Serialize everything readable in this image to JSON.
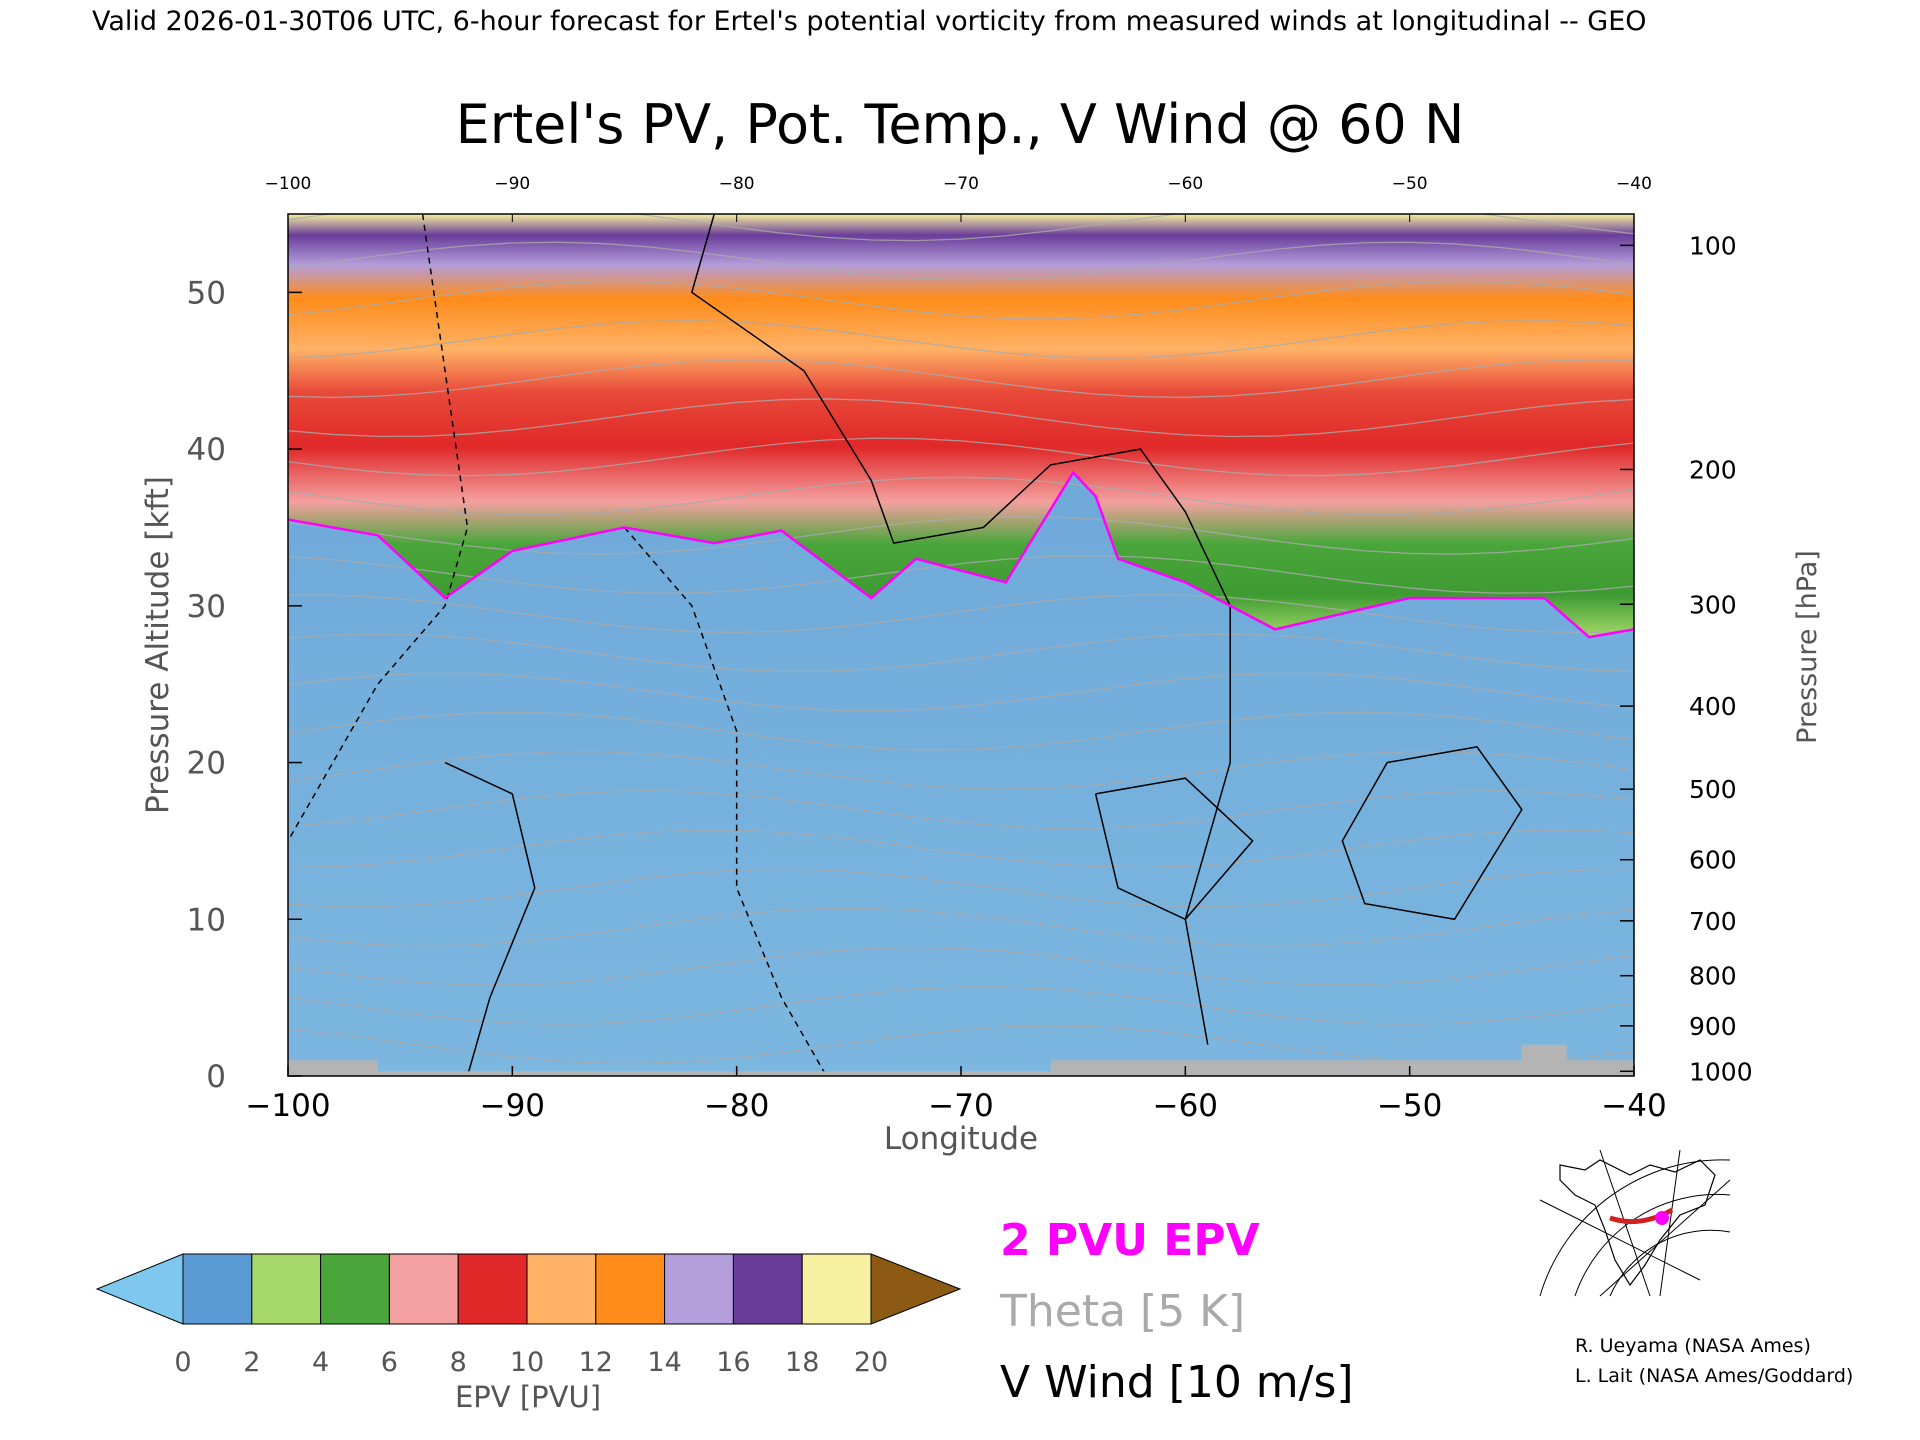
{
  "header": {
    "valid_line": "Valid 2026-01-30T06 UTC, 6-hour forecast for Ertel's potential vorticity from measured winds at longitudinal -- GEO"
  },
  "chart_data": {
    "type": "heatmap",
    "title": "Ertel's PV, Pot. Temp., V Wind @ 60 N",
    "xlabel": "Longitude",
    "ylabel_left": "Pressure Altitude [kft]",
    "ylabel_right": "Pressure [hPa]",
    "xlim": [
      -100,
      -40
    ],
    "ylim": [
      0,
      55
    ],
    "x_ticks": [
      -100,
      -90,
      -80,
      -70,
      -60,
      -50,
      -40
    ],
    "y_ticks": [
      0,
      10,
      20,
      30,
      40,
      50
    ],
    "pressure_ticks": [
      {
        "hpa": "100",
        "kft": 53.0
      },
      {
        "hpa": "200",
        "kft": 38.7
      },
      {
        "hpa": "300",
        "kft": 30.1
      },
      {
        "hpa": "400",
        "kft": 23.6
      },
      {
        "hpa": "500",
        "kft": 18.3
      },
      {
        "hpa": "600",
        "kft": 13.8
      },
      {
        "hpa": "700",
        "kft": 9.9
      },
      {
        "hpa": "800",
        "kft": 6.4
      },
      {
        "hpa": "900",
        "kft": 3.2
      },
      {
        "hpa": "1000",
        "kft": 0.3
      }
    ],
    "tropopause_2pvu_kft": [
      {
        "lon": -100,
        "kft": 35.5
      },
      {
        "lon": -96,
        "kft": 34.5
      },
      {
        "lon": -93,
        "kft": 30.5
      },
      {
        "lon": -90,
        "kft": 33.5
      },
      {
        "lon": -85,
        "kft": 35
      },
      {
        "lon": -81,
        "kft": 34
      },
      {
        "lon": -78,
        "kft": 34.8
      },
      {
        "lon": -74,
        "kft": 30.5
      },
      {
        "lon": -72,
        "kft": 33
      },
      {
        "lon": -68,
        "kft": 31.5
      },
      {
        "lon": -65,
        "kft": 38.5
      },
      {
        "lon": -64,
        "kft": 37
      },
      {
        "lon": -63,
        "kft": 33
      },
      {
        "lon": -60,
        "kft": 31.5
      },
      {
        "lon": -56,
        "kft": 28.5
      },
      {
        "lon": -50,
        "kft": 30.5
      },
      {
        "lon": -44,
        "kft": 30.5
      },
      {
        "lon": -42,
        "kft": 28
      },
      {
        "lon": -40,
        "kft": 28.5
      }
    ],
    "colorbar": {
      "label": "EPV [PVU]",
      "ticks": [
        "0",
        "2",
        "4",
        "6",
        "8",
        "10",
        "12",
        "14",
        "16",
        "18",
        "20"
      ],
      "colors": [
        "#7ec8f0",
        "#5b9bd5",
        "#a6d96a",
        "#4aa63a",
        "#f4a0a0",
        "#e02828",
        "#ffb266",
        "#ff8c1a",
        "#b39ddb",
        "#6a3d9a",
        "#f7f0a0",
        "#8c5a12"
      ]
    },
    "legend": {
      "epv_2pvu": "2 PVU EPV",
      "theta": "Theta [5 K]",
      "vwind": "V Wind [10 m/s]"
    }
  },
  "credits": {
    "line1": "R. Ueyama (NASA Ames)",
    "line2": "L. Lait (NASA Ames/Goddard)"
  },
  "colors": {
    "pv_contour": "#ff00ff",
    "theta_contour": "#aaaaaa",
    "vwind_contour": "#000000",
    "ground": "#b4b4b4"
  }
}
